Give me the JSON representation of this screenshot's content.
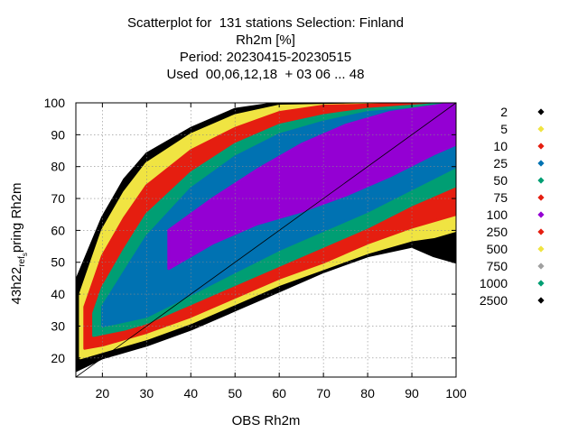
{
  "chart_data": {
    "type": "scatter",
    "title_lines": [
      "Scatterplot for  131 stations Selection: Finland",
      "Rh2m [%]",
      "Period: 20230415-20230515",
      "Used  00,06,12,18  + 03 06 ... 48"
    ],
    "xlabel": "OBS Rh2m",
    "ylabel_parts": [
      "43h22",
      "ref",
      "s",
      "pring Rh2m"
    ],
    "xlim": [
      14,
      100
    ],
    "ylim": [
      14,
      100
    ],
    "xticks": [
      20,
      30,
      40,
      50,
      60,
      70,
      80,
      90,
      100
    ],
    "yticks": [
      20,
      30,
      40,
      50,
      60,
      70,
      80,
      90,
      100
    ],
    "grid": true,
    "diagonal": true,
    "legend_position": "right",
    "legend": [
      {
        "label": "2",
        "color": "#000000",
        "shape": "diamond"
      },
      {
        "label": "5",
        "color": "#f0e442",
        "shape": "diamond"
      },
      {
        "label": "10",
        "color": "#e51e10",
        "shape": "diamond"
      },
      {
        "label": "25",
        "color": "#0072b2",
        "shape": "diamond"
      },
      {
        "label": "50",
        "color": "#009e73",
        "shape": "diamond"
      },
      {
        "label": "75",
        "color": "#e51e10",
        "shape": "diamond"
      },
      {
        "label": "100",
        "color": "#9400d3",
        "shape": "diamond"
      },
      {
        "label": "250",
        "color": "#e51e10",
        "shape": "diamond"
      },
      {
        "label": "500",
        "color": "#f0e442",
        "shape": "diamond"
      },
      {
        "label": "750",
        "color": "#a0a0a0",
        "shape": "diamond"
      },
      {
        "label": "1000",
        "color": "#009e73",
        "shape": "diamond"
      },
      {
        "label": "2500",
        "color": "#000000",
        "shape": "diamond"
      }
    ],
    "density_bands": [
      {
        "level": "2",
        "color": "#000000",
        "lower": [
          [
            14,
            16
          ],
          [
            20,
            20
          ],
          [
            30,
            24
          ],
          [
            40,
            29
          ],
          [
            50,
            35
          ],
          [
            60,
            41
          ],
          [
            70,
            47
          ],
          [
            80,
            52
          ],
          [
            90,
            55
          ],
          [
            95,
            52
          ],
          [
            100,
            50
          ]
        ],
        "upper": [
          [
            14,
            44
          ],
          [
            20,
            64
          ],
          [
            25,
            76
          ],
          [
            30,
            84
          ],
          [
            40,
            92
          ],
          [
            50,
            98
          ],
          [
            60,
            100
          ],
          [
            100,
            100
          ]
        ]
      },
      {
        "level": "500",
        "color": "#f0e442",
        "lower": [
          [
            15,
            20
          ],
          [
            20,
            22
          ],
          [
            30,
            26
          ],
          [
            40,
            31
          ],
          [
            50,
            37
          ],
          [
            60,
            43
          ],
          [
            70,
            48
          ],
          [
            80,
            53
          ],
          [
            90,
            57
          ],
          [
            95,
            58
          ],
          [
            100,
            60
          ]
        ],
        "upper": [
          [
            15,
            40
          ],
          [
            20,
            60
          ],
          [
            25,
            72
          ],
          [
            30,
            81
          ],
          [
            40,
            90
          ],
          [
            50,
            96
          ],
          [
            60,
            99
          ],
          [
            100,
            100
          ]
        ]
      },
      {
        "level": "250",
        "color": "#e51e10",
        "lower": [
          [
            16,
            23
          ],
          [
            20,
            24
          ],
          [
            30,
            28
          ],
          [
            40,
            33
          ],
          [
            50,
            39
          ],
          [
            60,
            45
          ],
          [
            70,
            50
          ],
          [
            80,
            56
          ],
          [
            90,
            61
          ],
          [
            100,
            65
          ]
        ],
        "upper": [
          [
            16,
            36
          ],
          [
            20,
            52
          ],
          [
            25,
            64
          ],
          [
            30,
            74
          ],
          [
            40,
            85
          ],
          [
            50,
            92
          ],
          [
            60,
            97
          ],
          [
            70,
            99
          ],
          [
            100,
            100
          ]
        ]
      },
      {
        "level": "50",
        "color": "#009e73",
        "lower": [
          [
            18,
            27
          ],
          [
            25,
            29
          ],
          [
            30,
            31
          ],
          [
            40,
            37
          ],
          [
            50,
            43
          ],
          [
            60,
            49
          ],
          [
            70,
            55
          ],
          [
            80,
            61
          ],
          [
            90,
            68
          ],
          [
            100,
            74
          ]
        ],
        "upper": [
          [
            18,
            34
          ],
          [
            20,
            42
          ],
          [
            25,
            54
          ],
          [
            30,
            65
          ],
          [
            40,
            78
          ],
          [
            50,
            87
          ],
          [
            60,
            93
          ],
          [
            70,
            96
          ],
          [
            80,
            98
          ],
          [
            100,
            100
          ]
        ]
      },
      {
        "level": "25",
        "color": "#0072b2",
        "lower": [
          [
            20,
            30
          ],
          [
            30,
            33
          ],
          [
            40,
            40
          ],
          [
            50,
            47
          ],
          [
            60,
            54
          ],
          [
            70,
            60
          ],
          [
            80,
            66
          ],
          [
            90,
            73
          ],
          [
            100,
            80
          ]
        ],
        "upper": [
          [
            20,
            36
          ],
          [
            25,
            47
          ],
          [
            30,
            58
          ],
          [
            40,
            73
          ],
          [
            50,
            83
          ],
          [
            60,
            90
          ],
          [
            70,
            94
          ],
          [
            80,
            97
          ],
          [
            100,
            99
          ]
        ]
      },
      {
        "level": "100",
        "color": "#9400d3",
        "lower": [
          [
            35,
            48
          ],
          [
            45,
            56
          ],
          [
            55,
            62
          ],
          [
            65,
            66
          ],
          [
            75,
            71
          ],
          [
            85,
            77
          ],
          [
            95,
            84
          ],
          [
            100,
            87
          ]
        ],
        "upper": [
          [
            35,
            60
          ],
          [
            45,
            70
          ],
          [
            55,
            79
          ],
          [
            65,
            87
          ],
          [
            75,
            93
          ],
          [
            85,
            97
          ],
          [
            95,
            99
          ],
          [
            100,
            100
          ]
        ]
      }
    ]
  }
}
